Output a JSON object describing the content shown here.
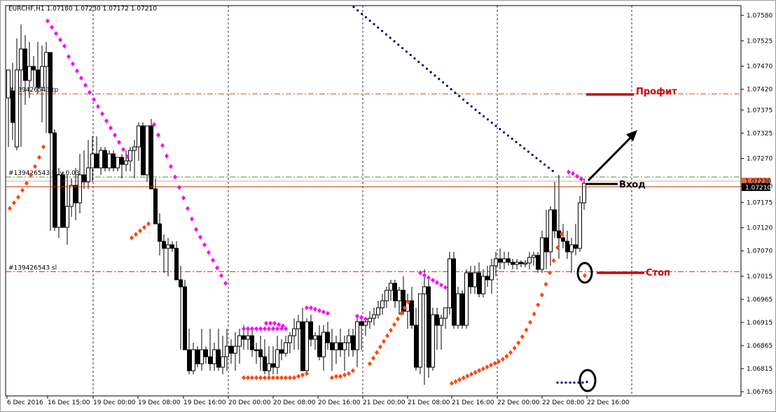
{
  "header": {
    "symbol_info": "EURCHF,H1  1.07180 1.07230 1.07172 1.07210"
  },
  "chart_data": {
    "type": "candlestick",
    "yticks": [
      "1.07580",
      "1.07525",
      "1.07470",
      "1.07420",
      "1.07375",
      "1.07325",
      "1.07270",
      "1.07210",
      "1.07175",
      "1.07120",
      "1.07070",
      "1.07015",
      "1.06965",
      "1.06915",
      "1.06865",
      "1.06815",
      "1.06765"
    ],
    "ylim": [
      1.06745,
      1.0761
    ],
    "xticks": [
      "6 Dec 2016",
      "16 Dec 15:00",
      "19 Dec 00:00",
      "19 Dec 08:00",
      "19 Dec 16:00",
      "20 Dec 00:00",
      "20 Dec 08:00",
      "20 Dec 16:00",
      "21 Dec 00:00",
      "21 Dec 08:00",
      "21 Dec 16:00",
      "22 Dec 00:00",
      "22 Dec 08:00",
      "22 Dec 16:00"
    ],
    "bid_price": "1.07210",
    "price_tag_top": "1.07230",
    "order_lines": [
      {
        "label": "#139426543 tp",
        "price": 1.0741,
        "color": "#cc3300"
      },
      {
        "label": "#139426543 buy 0.03",
        "price": 1.0723,
        "color": "#2e7d32"
      },
      {
        "label": "#139426543 sl",
        "price": 1.07025,
        "color": "#cc3300"
      }
    ],
    "annotations": {
      "profit": "Профит",
      "entry": "Вход",
      "stop": "Стоп"
    },
    "colors": {
      "candle": "#000000",
      "grid": "#000000",
      "psar_magenta": "#ff00ff",
      "psar_orange": "#ff4500",
      "psar_navy": "#000080",
      "annotation_red": "#cc0000"
    }
  }
}
